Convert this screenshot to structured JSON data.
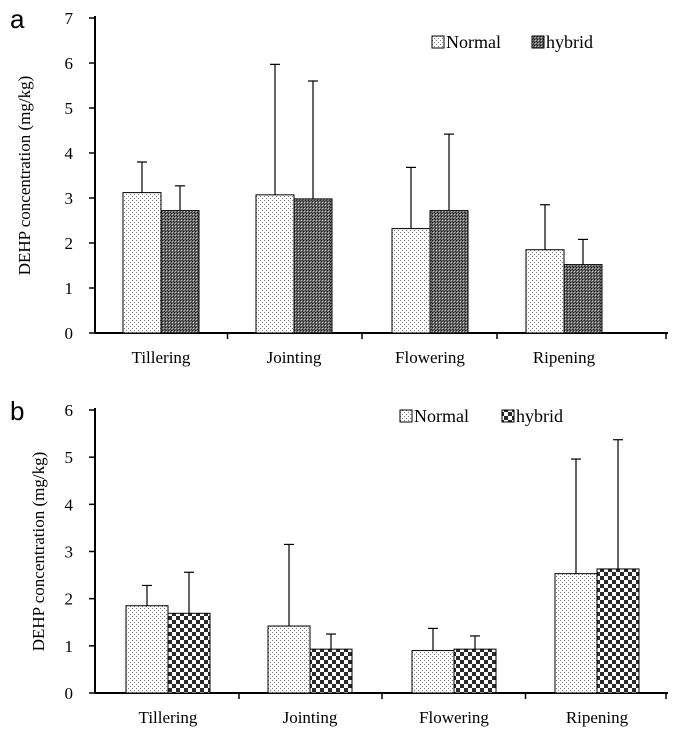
{
  "chart_data": [
    {
      "panel": "a",
      "type": "bar",
      "ylabel": "DEHP concentration (mg/kg)",
      "xlabel": "",
      "ylim": [
        0,
        7
      ],
      "yticks": [
        0,
        1,
        2,
        3,
        4,
        5,
        6,
        7
      ],
      "categories": [
        "Tillering",
        "Jointing",
        "Flowering",
        "Ripening"
      ],
      "legend_position": "top-right",
      "series": [
        {
          "name": "Normal",
          "values": [
            3.12,
            3.07,
            2.32,
            1.85
          ],
          "error": [
            0.68,
            2.9,
            1.36,
            1.0
          ],
          "pattern": "dots-light"
        },
        {
          "name": "hybrid",
          "values": [
            2.72,
            2.98,
            2.72,
            1.52
          ],
          "error": [
            0.55,
            2.62,
            1.7,
            0.56
          ],
          "pattern": "dots-dark"
        }
      ]
    },
    {
      "panel": "b",
      "type": "bar",
      "ylabel": "DEHP concentration (mg/kg)",
      "xlabel": "",
      "ylim": [
        0,
        6
      ],
      "yticks": [
        0,
        1,
        2,
        3,
        4,
        5,
        6
      ],
      "categories": [
        "Tillering",
        "Jointing",
        "Flowering",
        "Ripening"
      ],
      "legend_position": "top-right",
      "series": [
        {
          "name": "Normal",
          "values": [
            1.85,
            1.42,
            0.9,
            2.53
          ],
          "error": [
            0.43,
            1.73,
            0.47,
            2.43
          ],
          "pattern": "dots-light"
        },
        {
          "name": "hybrid",
          "values": [
            1.69,
            0.93,
            0.93,
            2.63
          ],
          "error": [
            0.87,
            0.32,
            0.28,
            2.74
          ],
          "pattern": "checker"
        }
      ]
    }
  ]
}
